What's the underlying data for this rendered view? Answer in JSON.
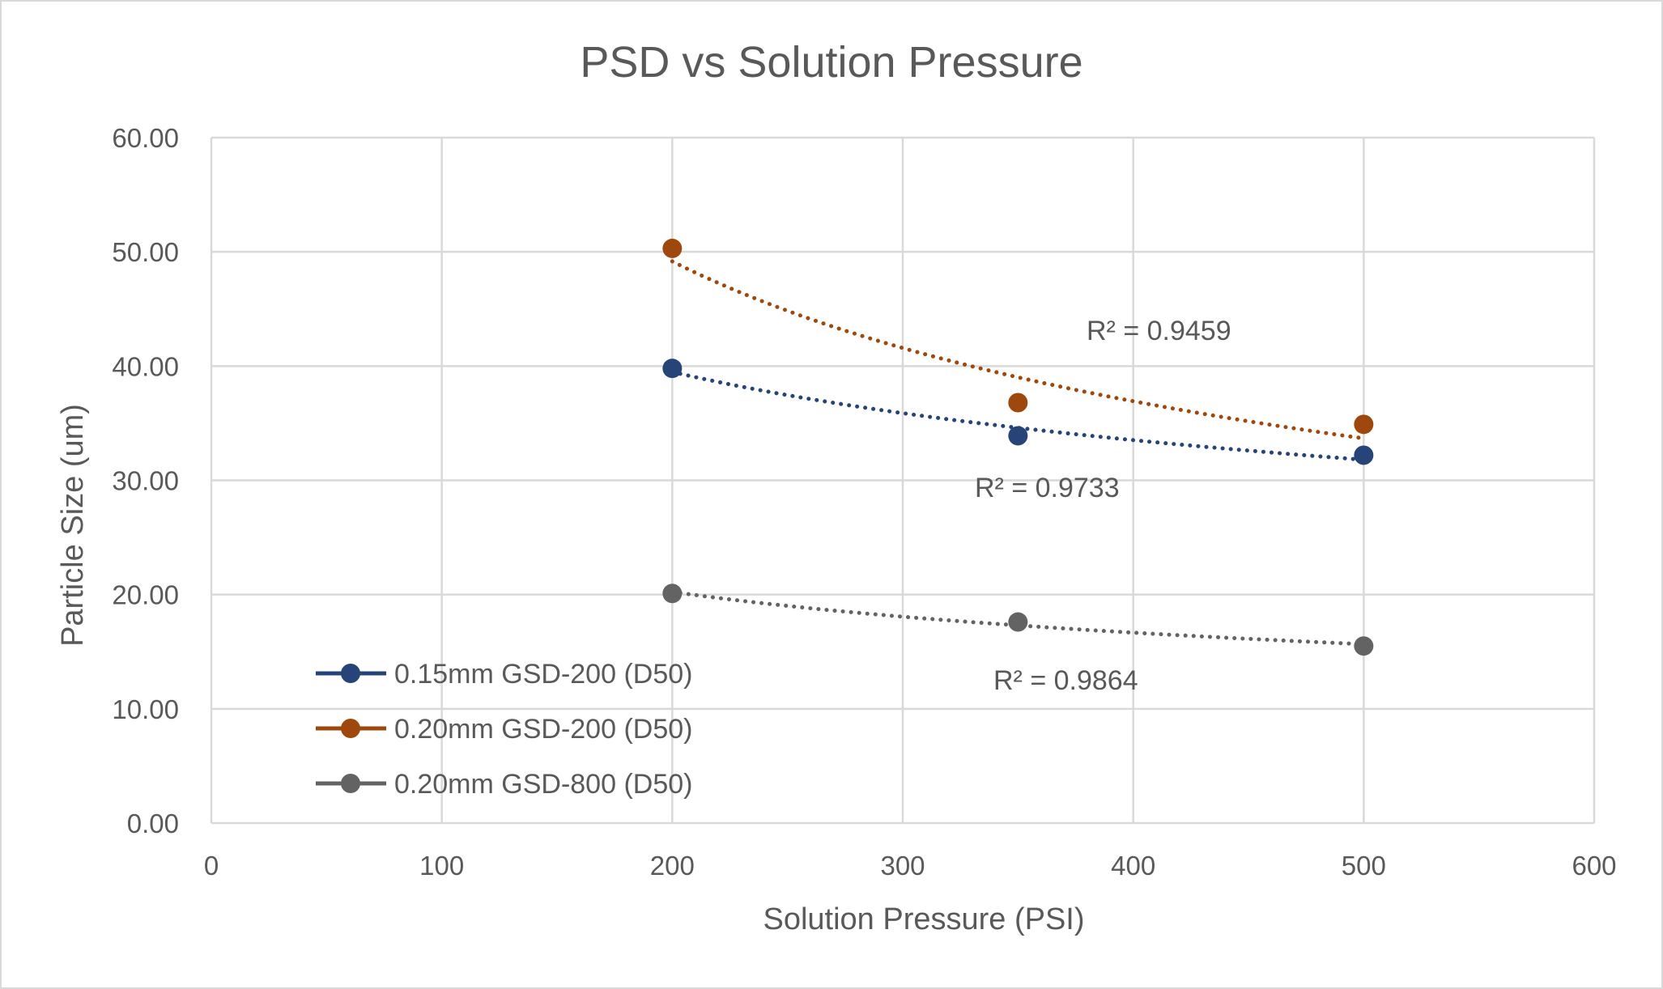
{
  "chart_data": {
    "type": "scatter",
    "title": "PSD vs Solution Pressure",
    "xlabel": "Solution Pressure (PSI)",
    "ylabel": "Particle Size (um)",
    "xlim": [
      0,
      600
    ],
    "ylim": [
      0,
      60
    ],
    "x_ticks": [
      0,
      100,
      200,
      300,
      400,
      500,
      600
    ],
    "y_ticks": [
      "0.00",
      "10.00",
      "20.00",
      "30.00",
      "40.00",
      "50.00",
      "60.00"
    ],
    "grid": true,
    "legend_position": "bottom-left",
    "trendline": "power (dotted)",
    "series": [
      {
        "name": "0.15mm GSD-200 (D50)",
        "color": "#264478",
        "x": [
          200,
          350,
          500
        ],
        "y": [
          39.8,
          33.9,
          32.2
        ],
        "r2_label": "R² = 0.9733"
      },
      {
        "name": "0.20mm GSD-200 (D50)",
        "color": "#9E480E",
        "x": [
          200,
          350,
          500
        ],
        "y": [
          50.3,
          36.8,
          34.9
        ],
        "r2_label": "R² = 0.9459"
      },
      {
        "name": "0.20mm GSD-800 (D50)",
        "color": "#636363",
        "x": [
          200,
          350,
          500
        ],
        "y": [
          20.1,
          17.6,
          15.5
        ],
        "r2_label": "R² = 0.9864"
      }
    ]
  }
}
